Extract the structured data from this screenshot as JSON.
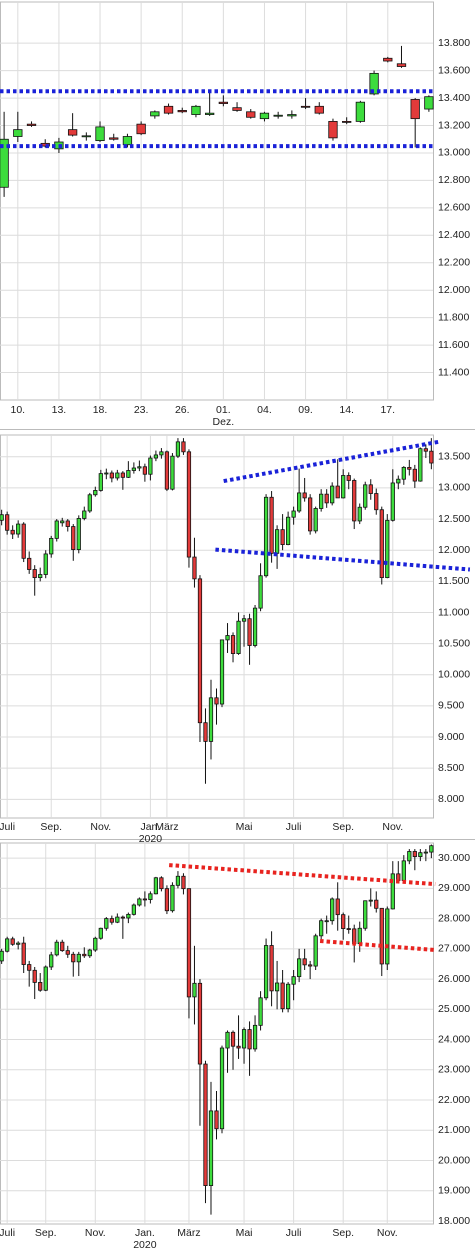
{
  "chart_data": [
    {
      "type": "candlestick",
      "categories": [
        null,
        "10.",
        null,
        null,
        "13.",
        null,
        null,
        "18.",
        null,
        null,
        "23.",
        null,
        null,
        "26.",
        null,
        null,
        "01.",
        null,
        null,
        "04.",
        null,
        null,
        "09.",
        null,
        null,
        "14.",
        null,
        null,
        "17.",
        null,
        null,
        null
      ],
      "sublabels": [
        {
          "index": 16,
          "label": "Dez."
        }
      ],
      "open": [
        12750,
        13120,
        13210,
        13070,
        13030,
        13170,
        13120,
        13090,
        13110,
        13060,
        13210,
        13270,
        13340,
        13310,
        13280,
        13280,
        13370,
        13330,
        13300,
        13250,
        13270,
        13270,
        13340,
        13340,
        13230,
        13230,
        13230,
        13430,
        13690,
        13650,
        13390,
        13320
      ],
      "high": [
        13300,
        13300,
        13230,
        13100,
        13110,
        13290,
        13150,
        13230,
        13140,
        13140,
        13230,
        13310,
        13360,
        13330,
        13350,
        13460,
        13420,
        13370,
        13320,
        13300,
        13300,
        13310,
        13400,
        13370,
        13250,
        13260,
        13380,
        13600,
        13700,
        13780,
        13400,
        13420
      ],
      "low": [
        12680,
        13080,
        13190,
        13040,
        13000,
        13120,
        13090,
        13080,
        13090,
        13040,
        13130,
        13250,
        13280,
        13290,
        13260,
        13270,
        13340,
        13300,
        13250,
        13230,
        13250,
        13250,
        13320,
        13280,
        13090,
        13210,
        13220,
        13420,
        13660,
        13620,
        13040,
        13300
      ],
      "close": [
        13100,
        13170,
        13200,
        13050,
        13080,
        13130,
        13125,
        13190,
        13100,
        13120,
        13140,
        13300,
        13290,
        13300,
        13340,
        13290,
        13360,
        13310,
        13260,
        13290,
        13275,
        13280,
        13335,
        13290,
        13110,
        13225,
        13370,
        13580,
        13670,
        13630,
        13250,
        13410
      ],
      "up_color": "#3ddc3d",
      "down_color": "#e23a3a",
      "ylim": [
        11200,
        14100
      ],
      "yticks": [
        {
          "value": 11400,
          "label": "11.400"
        },
        {
          "value": 11600,
          "label": "11.600"
        },
        {
          "value": 11800,
          "label": "11.800"
        },
        {
          "value": 12000,
          "label": "12.000"
        },
        {
          "value": 12200,
          "label": "12.200"
        },
        {
          "value": 12400,
          "label": "12.400"
        },
        {
          "value": 12600,
          "label": "12.600"
        },
        {
          "value": 12800,
          "label": "12.800"
        },
        {
          "value": 13000,
          "label": "13.000"
        },
        {
          "value": 13200,
          "label": "13.200"
        },
        {
          "value": 13400,
          "label": "13.400"
        },
        {
          "value": 13600,
          "label": "13.600"
        },
        {
          "value": 13800,
          "label": "13.800"
        }
      ],
      "grid": true,
      "trendlines": [
        {
          "from": [
            -0.3,
            13450
          ],
          "to": [
            31.3,
            13450
          ],
          "color": "#1a22d8"
        },
        {
          "from": [
            -0.3,
            13050
          ],
          "to": [
            31.3,
            13050
          ],
          "color": "#1a22d8"
        }
      ]
    },
    {
      "type": "candlestick",
      "categories": [
        null,
        "Juli",
        null,
        null,
        null,
        null,
        null,
        null,
        null,
        "Sep.",
        null,
        null,
        null,
        null,
        null,
        null,
        null,
        null,
        "Nov.",
        null,
        null,
        null,
        null,
        null,
        null,
        null,
        null,
        "Jan.",
        null,
        null,
        "März",
        null,
        null,
        null,
        null,
        null,
        null,
        null,
        null,
        null,
        null,
        null,
        null,
        null,
        "Mai",
        null,
        null,
        null,
        null,
        null,
        null,
        null,
        null,
        "Juli",
        null,
        null,
        null,
        null,
        null,
        null,
        null,
        null,
        "Sep.",
        null,
        null,
        null,
        null,
        null,
        null,
        null,
        null,
        "Nov.",
        null,
        null,
        null,
        null,
        null,
        null,
        null
      ],
      "sublabels": [
        {
          "index": 27,
          "label": "2020"
        }
      ],
      "open": [
        12480,
        12570,
        12320,
        12260,
        12420,
        11870,
        11690,
        11560,
        11610,
        11940,
        12190,
        12440,
        12470,
        12380,
        12010,
        12510,
        12630,
        12890,
        12960,
        13230,
        13240,
        13160,
        13240,
        13170,
        13280,
        13320,
        13340,
        13220,
        13480,
        13530,
        13580,
        12980,
        13510,
        13740,
        13580,
        11890,
        11540,
        9230,
        8930,
        9630,
        9530,
        10560,
        10630,
        10340,
        10860,
        10900,
        10470,
        11070,
        11590,
        12850,
        11950,
        12330,
        12090,
        12530,
        12630,
        12920,
        12840,
        12310,
        12670,
        12900,
        12760,
        13030,
        12840,
        13200,
        13120,
        12470,
        12690,
        13050,
        12910,
        12650,
        11560,
        12480,
        13080,
        13140,
        13330,
        13300,
        13110,
        13630,
        13590
      ],
      "high": [
        12650,
        12620,
        12400,
        12480,
        12450,
        11980,
        11760,
        11720,
        12000,
        12230,
        12500,
        12520,
        12500,
        12420,
        12560,
        12700,
        12920,
        13020,
        13290,
        13310,
        13280,
        13290,
        13270,
        13430,
        13410,
        13440,
        13390,
        13520,
        13600,
        13640,
        13600,
        13560,
        13800,
        13800,
        13620,
        12200,
        11600,
        9460,
        9920,
        9780,
        10560,
        10830,
        10680,
        11000,
        10960,
        10980,
        11120,
        11790,
        12900,
        12950,
        12400,
        12580,
        12620,
        12700,
        13310,
        13160,
        12900,
        12700,
        12980,
        12980,
        13090,
        13460,
        13300,
        13250,
        13150,
        12750,
        13100,
        13140,
        12990,
        12700,
        12580,
        13300,
        13200,
        13350,
        13450,
        13370,
        13650,
        13700,
        13800
      ],
      "low": [
        12400,
        12250,
        12180,
        12200,
        11810,
        11620,
        11270,
        11500,
        11550,
        11880,
        12140,
        12380,
        12300,
        11830,
        11950,
        12480,
        12600,
        12860,
        12940,
        13140,
        13090,
        13120,
        12970,
        13160,
        13230,
        13270,
        13100,
        13120,
        13430,
        13470,
        12950,
        12960,
        13480,
        13530,
        11720,
        11400,
        8920,
        8250,
        8640,
        9200,
        9480,
        10350,
        10200,
        10320,
        10450,
        10160,
        10440,
        11020,
        11560,
        11800,
        11700,
        12000,
        12080,
        12410,
        12600,
        12780,
        12250,
        12270,
        12620,
        12680,
        12720,
        12840,
        12830,
        12980,
        12340,
        12420,
        12650,
        12810,
        12570,
        11450,
        11550,
        12460,
        12980,
        13050,
        13200,
        13000,
        13100,
        13480,
        13300
      ],
      "close": [
        12570,
        12320,
        12260,
        12420,
        11870,
        11690,
        11560,
        11610,
        11940,
        12190,
        12470,
        12470,
        12380,
        12010,
        12510,
        12630,
        12890,
        12960,
        13230,
        13240,
        13160,
        13240,
        13170,
        13280,
        13320,
        13340,
        13220,
        13480,
        13530,
        13580,
        12980,
        13510,
        13740,
        13580,
        11890,
        11540,
        9230,
        8930,
        9630,
        9530,
        10560,
        10630,
        10340,
        10860,
        10900,
        10470,
        11070,
        11590,
        12850,
        11950,
        12330,
        12090,
        12530,
        12630,
        12920,
        12840,
        12310,
        12670,
        12900,
        12760,
        13030,
        12840,
        13200,
        13120,
        12470,
        12690,
        13050,
        12910,
        12650,
        11560,
        12480,
        13080,
        13140,
        13330,
        13300,
        13110,
        13630,
        13590,
        13400
      ],
      "up_color": "#3ddc3d",
      "down_color": "#e23a3a",
      "ylim": [
        7700,
        13850
      ],
      "yticks": [
        {
          "value": 8000,
          "label": "8.000"
        },
        {
          "value": 8500,
          "label": "8.500"
        },
        {
          "value": 9000,
          "label": "9.000"
        },
        {
          "value": 9500,
          "label": "9.500"
        },
        {
          "value": 10000,
          "label": "10.000"
        },
        {
          "value": 10500,
          "label": "10.500"
        },
        {
          "value": 11000,
          "label": "11.000"
        },
        {
          "value": 11500,
          "label": "11.500"
        },
        {
          "value": 12000,
          "label": "12.000"
        },
        {
          "value": 12500,
          "label": "12.500"
        },
        {
          "value": 13000,
          "label": "13.000"
        },
        {
          "value": 13500,
          "label": "13.500"
        }
      ],
      "grid": true,
      "trendlines": [
        {
          "from": [
            40.3,
            13110
          ],
          "to": [
            79.3,
            13740
          ],
          "color": "#1a22d8"
        },
        {
          "from": [
            38.8,
            12010
          ],
          "to": [
            85,
            11690
          ],
          "color": "#1a22d8"
        }
      ]
    },
    {
      "type": "candlestick",
      "categories": [
        null,
        "Juli",
        null,
        null,
        null,
        null,
        null,
        null,
        "Sep.",
        null,
        null,
        null,
        null,
        null,
        null,
        null,
        null,
        "Nov.",
        null,
        null,
        null,
        null,
        null,
        null,
        null,
        null,
        "Jan.",
        null,
        null,
        null,
        null,
        null,
        null,
        null,
        "März",
        null,
        null,
        null,
        null,
        null,
        null,
        null,
        null,
        null,
        "Mai",
        null,
        null,
        null,
        null,
        null,
        null,
        null,
        null,
        "Juli",
        null,
        null,
        null,
        null,
        null,
        null,
        null,
        null,
        "Sep.",
        null,
        null,
        null,
        null,
        null,
        null,
        null,
        "Nov.",
        null,
        null,
        null,
        null,
        null,
        null,
        null,
        null
      ],
      "sublabels": [
        {
          "index": 26,
          "label": "2020"
        }
      ],
      "open": [
        26600,
        26920,
        27330,
        27150,
        27190,
        26480,
        26290,
        25890,
        25630,
        26400,
        26800,
        27220,
        26940,
        26820,
        26570,
        26820,
        26770,
        26960,
        27350,
        27680,
        28000,
        27880,
        28050,
        28020,
        28140,
        28450,
        28650,
        28630,
        28820,
        29350,
        28990,
        28260,
        29100,
        29400,
        28990,
        25410,
        25860,
        23190,
        19170,
        21640,
        21050,
        23720,
        24240,
        23780,
        23720,
        24330,
        23690,
        24470,
        25380,
        27110,
        25610,
        25870,
        25020,
        25830,
        26080,
        26670,
        26470,
        26430,
        27430,
        27910,
        27930,
        28650,
        28130,
        27670,
        27660,
        27170,
        27680,
        28590,
        28610,
        28340,
        26500,
        28320,
        29480,
        29260,
        29910,
        30220,
        30050,
        30180,
        30200
      ],
      "high": [
        27000,
        27400,
        27400,
        27250,
        27400,
        26600,
        26400,
        26200,
        26450,
        26900,
        27300,
        27300,
        27100,
        26900,
        26900,
        27050,
        27000,
        27400,
        27700,
        28050,
        28100,
        28170,
        28100,
        28200,
        28500,
        28700,
        28900,
        28900,
        29380,
        29400,
        29100,
        29200,
        29570,
        29500,
        29000,
        27100,
        26000,
        23300,
        22600,
        22300,
        23800,
        24300,
        24300,
        24800,
        24400,
        24600,
        24800,
        25600,
        27340,
        27580,
        26600,
        26300,
        25900,
        26300,
        27000,
        27000,
        26600,
        27500,
        28000,
        28100,
        28700,
        29200,
        28200,
        28100,
        27800,
        27900,
        28600,
        29000,
        28900,
        28350,
        28400,
        29900,
        29900,
        30100,
        30300,
        30300,
        30300,
        30300,
        30450
      ],
      "low": [
        26500,
        26880,
        27100,
        26980,
        26200,
        25750,
        25340,
        25580,
        25600,
        26300,
        26750,
        26900,
        26700,
        26080,
        26100,
        26700,
        26700,
        26900,
        27300,
        27600,
        27800,
        27850,
        27330,
        27850,
        28100,
        28400,
        28400,
        28500,
        28800,
        28900,
        28150,
        28200,
        29000,
        28800,
        24700,
        24500,
        21150,
        18590,
        18210,
        20700,
        20900,
        22900,
        23000,
        23360,
        23200,
        22800,
        23600,
        24300,
        25300,
        25100,
        25000,
        24900,
        24900,
        25300,
        25900,
        26300,
        26000,
        26300,
        27300,
        27500,
        27800,
        27600,
        27300,
        27500,
        26550,
        26900,
        27600,
        28400,
        28200,
        26100,
        26300,
        28300,
        29200,
        29200,
        29800,
        29600,
        29900,
        29900,
        30000
      ],
      "close": [
        26920,
        27330,
        27150,
        27190,
        26480,
        26290,
        25890,
        25630,
        26400,
        26800,
        27220,
        26940,
        26820,
        26570,
        26820,
        26770,
        26960,
        27350,
        27680,
        28000,
        27880,
        28050,
        28020,
        28140,
        28450,
        28650,
        28630,
        28820,
        29350,
        28990,
        28260,
        29100,
        29400,
        28990,
        25410,
        25860,
        23190,
        19170,
        21640,
        21050,
        23720,
        24240,
        23780,
        23720,
        24330,
        23690,
        24470,
        25380,
        27110,
        25610,
        25870,
        25020,
        25830,
        26080,
        26670,
        26470,
        26430,
        27430,
        27930,
        27930,
        28650,
        28130,
        27670,
        27660,
        27170,
        27680,
        28590,
        28610,
        28340,
        26500,
        28320,
        29480,
        29260,
        29910,
        30220,
        30050,
        30180,
        30200,
        30410
      ],
      "up_color": "#3ddc3d",
      "down_color": "#e23a3a",
      "ylim": [
        17900,
        30500
      ],
      "yticks": [
        {
          "value": 18000,
          "label": "18.000"
        },
        {
          "value": 19000,
          "label": "19.000"
        },
        {
          "value": 20000,
          "label": "20.000"
        },
        {
          "value": 21000,
          "label": "21.000"
        },
        {
          "value": 22000,
          "label": "22.000"
        },
        {
          "value": 23000,
          "label": "23.000"
        },
        {
          "value": 24000,
          "label": "24.000"
        },
        {
          "value": 25000,
          "label": "25.000"
        },
        {
          "value": 26000,
          "label": "26.000"
        },
        {
          "value": 27000,
          "label": "27.000"
        },
        {
          "value": 28000,
          "label": "28.000"
        },
        {
          "value": 29000,
          "label": "29.000"
        },
        {
          "value": 30000,
          "label": "30.000"
        }
      ],
      "grid": true,
      "trendlines": [
        {
          "from": [
            30.4,
            29770
          ],
          "to": [
            78.7,
            29140
          ],
          "color": "#e8231f"
        },
        {
          "from": [
            57.8,
            27260
          ],
          "to": [
            78.7,
            26960
          ],
          "color": "#e8231f"
        }
      ]
    }
  ]
}
